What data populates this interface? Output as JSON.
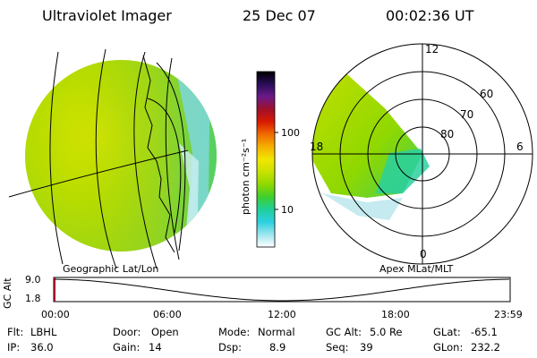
{
  "header": {
    "instrument": "Ultraviolet Imager",
    "date": "25 Dec 07",
    "time": "00:02:36 UT"
  },
  "panels": {
    "left_caption": "Geographic Lat/Lon",
    "right_caption": "Apex MLat/MLT"
  },
  "colorbar": {
    "unit_label": "photon cm⁻²s⁻¹",
    "ticks": [
      "100",
      "10"
    ],
    "stops": [
      "#000000",
      "#2a0d57",
      "#6a1a8a",
      "#a0102a",
      "#d81a00",
      "#f06a00",
      "#f5b000",
      "#f2e600",
      "#c9e200",
      "#8fd800",
      "#3fcf2e",
      "#1fcf9a",
      "#2ad0e0",
      "#9ee6ee",
      "#ffffff"
    ]
  },
  "right_polar": {
    "mlt_labels": [
      "12",
      "18",
      "6",
      "0"
    ],
    "mlat_labels": [
      "60",
      "70",
      "80"
    ]
  },
  "altitude_plot": {
    "axis_label": "GC Alt",
    "y_ticks": [
      "9.0",
      "1.8"
    ],
    "x_ticks": [
      "00:00",
      "06:00",
      "12:00",
      "18:00",
      "23:59"
    ]
  },
  "status": {
    "flt_label": "Flt:",
    "flt_value": "LBHL",
    "ip_label": "IP:",
    "ip_value": "36.0",
    "door_label": "Door:",
    "door_value": "Open",
    "gain_label": "Gain:",
    "gain_value": "14",
    "mode_label": "Mode:",
    "mode_value": "Normal",
    "dsp_label": "Dsp:",
    "dsp_value": "8.9",
    "gcalt_label": "GC Alt:",
    "gcalt_value": "5.0 Re",
    "seq_label": "Seq:",
    "seq_value": "39",
    "glat_label": "GLat:",
    "glat_value": "-65.1",
    "glon_label": "GLon:",
    "glon_value": "232.2"
  }
}
